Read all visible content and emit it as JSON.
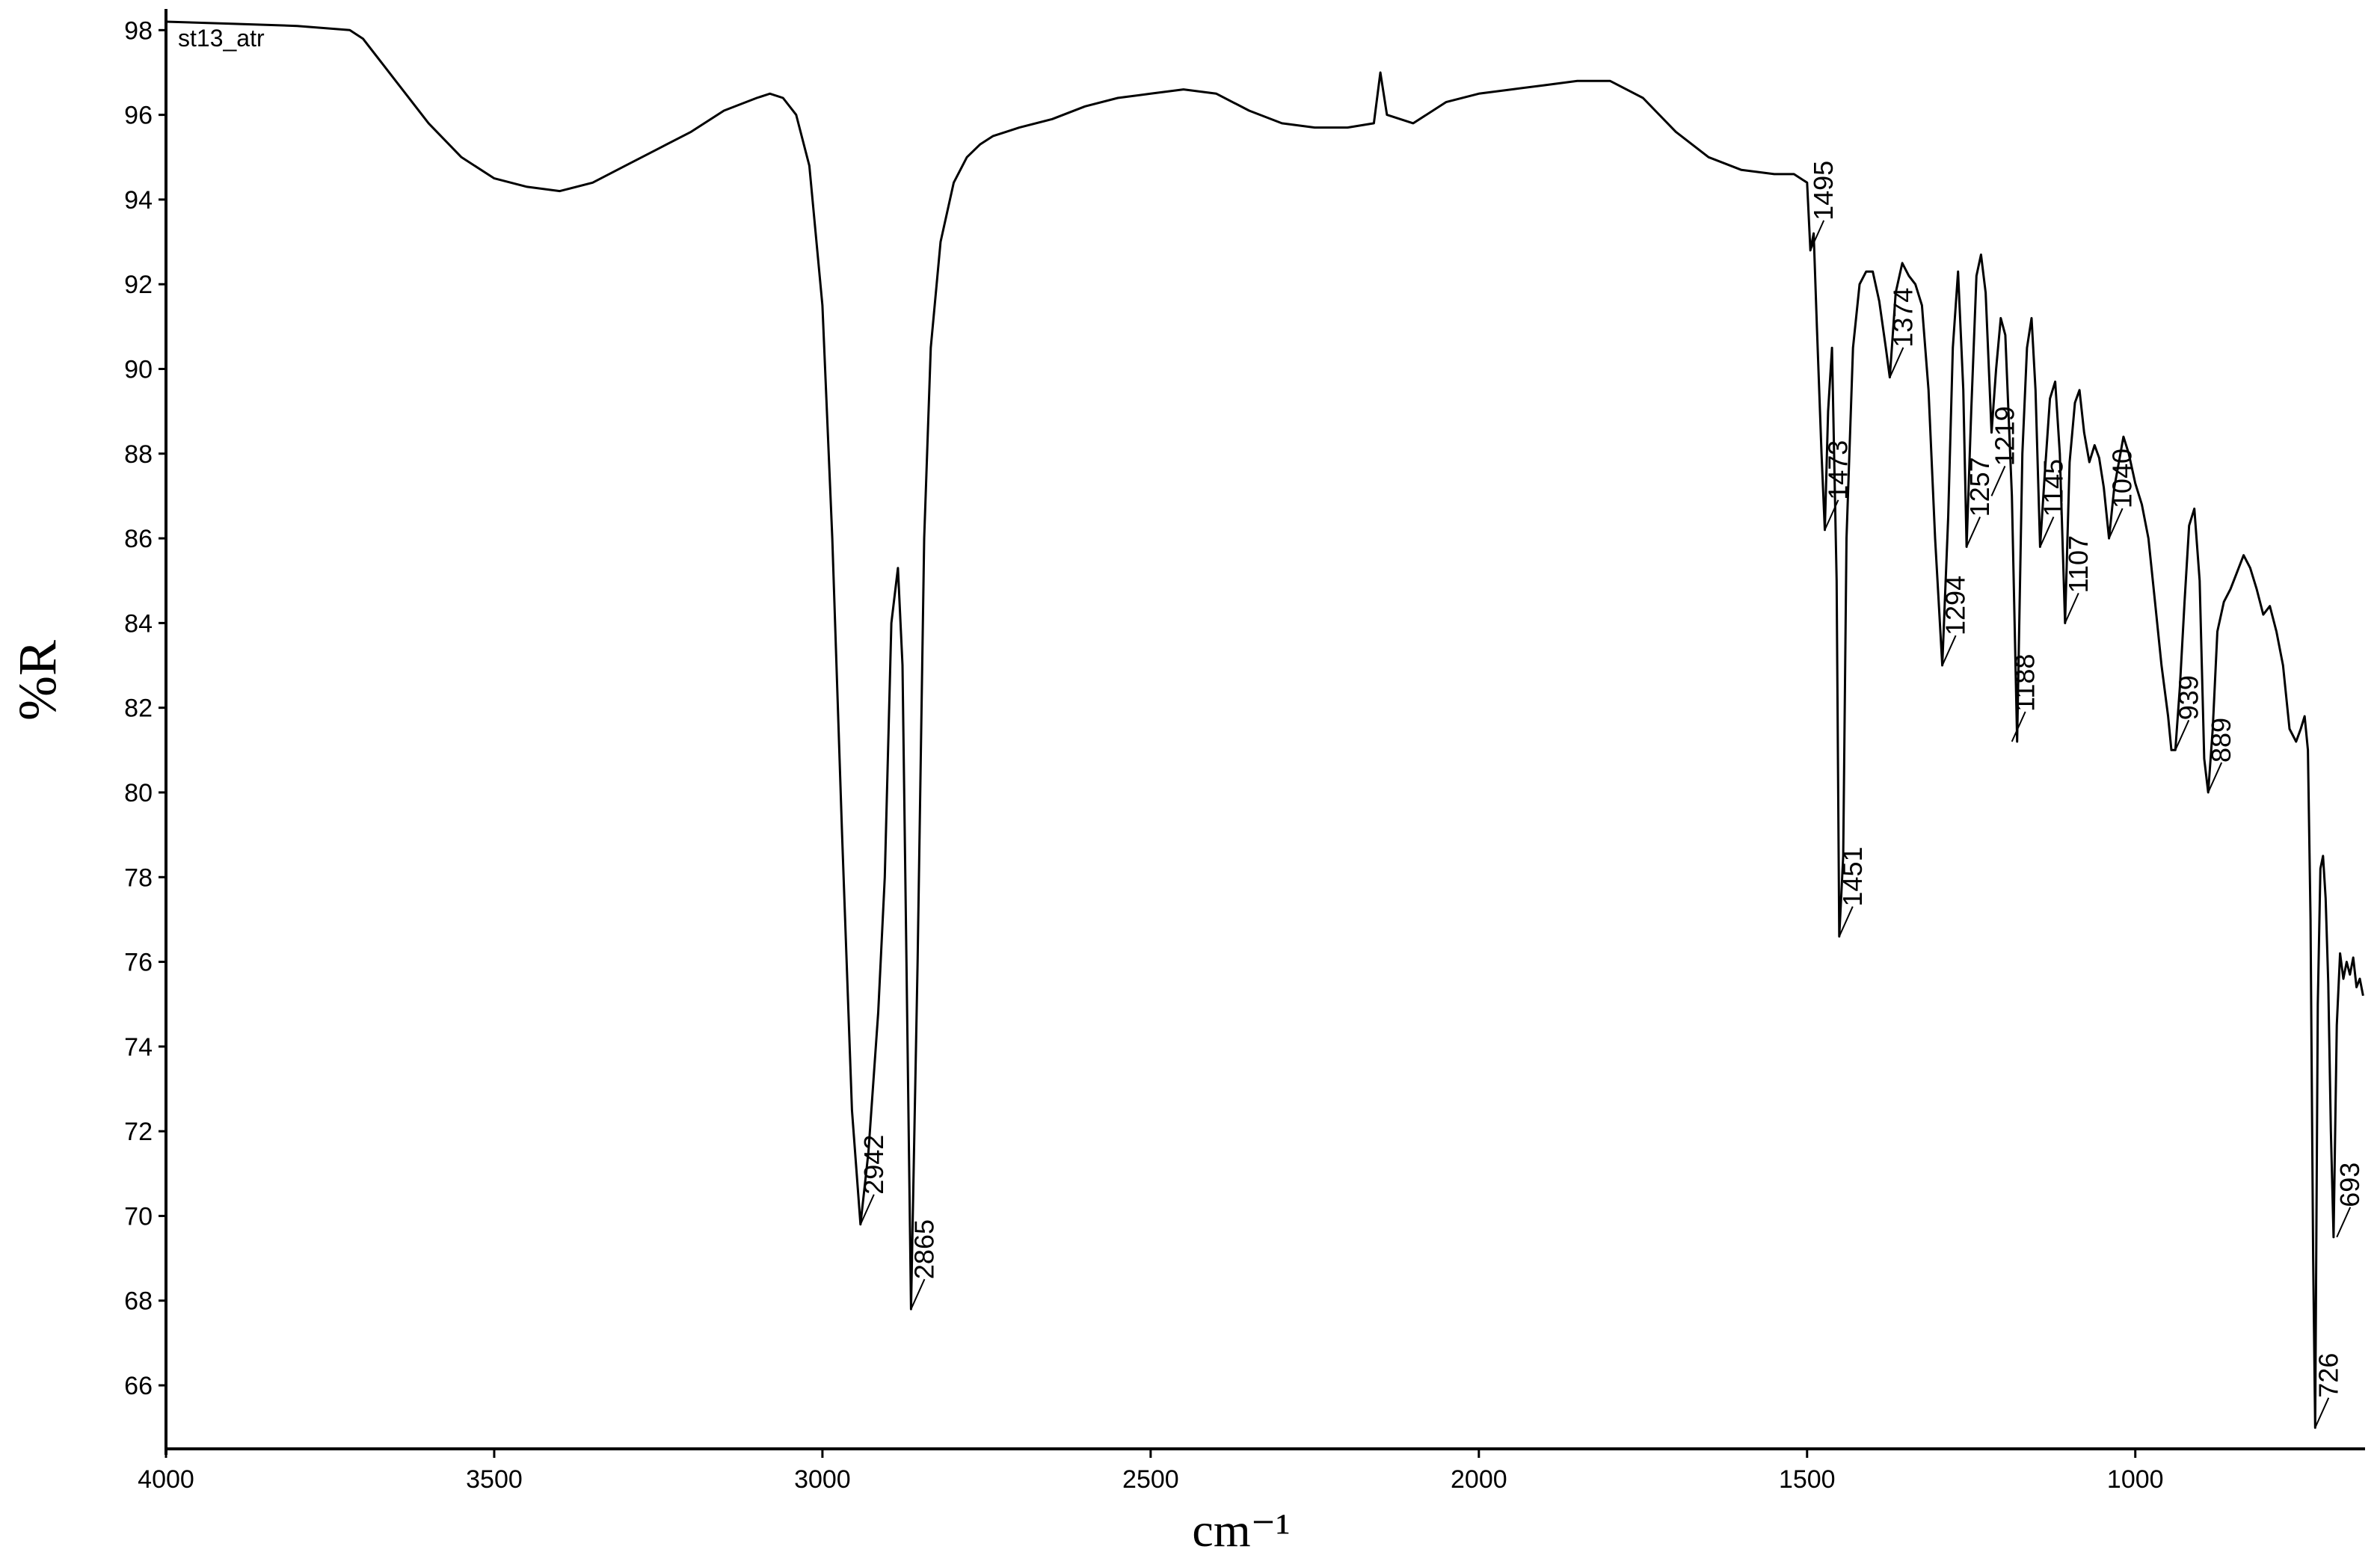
{
  "chart_data": {
    "type": "line",
    "title": "",
    "sample_label": "st13_atr",
    "xlabel": "cm⁻¹",
    "ylabel": "%R",
    "xlim": [
      4000,
      650
    ],
    "ylim": [
      64.5,
      98.5
    ],
    "x_reversed": true,
    "grid": false,
    "x_ticks": [
      4000,
      3500,
      3000,
      2500,
      2000,
      1500,
      1000
    ],
    "y_ticks": [
      66,
      68,
      70,
      72,
      74,
      76,
      78,
      80,
      82,
      84,
      86,
      88,
      90,
      92,
      94,
      96,
      98
    ],
    "series": [
      {
        "color": "#000000",
        "x": [
          4000,
          3900,
          3800,
          3720,
          3700,
          3650,
          3600,
          3550,
          3500,
          3450,
          3400,
          3350,
          3300,
          3250,
          3200,
          3150,
          3100,
          3080,
          3060,
          3040,
          3020,
          3000,
          2985,
          2970,
          2955,
          2942,
          2930,
          2915,
          2905,
          2895,
          2885,
          2878,
          2872,
          2865,
          2855,
          2845,
          2835,
          2820,
          2800,
          2780,
          2760,
          2740,
          2720,
          2700,
          2650,
          2600,
          2550,
          2500,
          2450,
          2400,
          2350,
          2300,
          2250,
          2200,
          2160,
          2150,
          2140,
          2100,
          2050,
          2000,
          1950,
          1900,
          1850,
          1800,
          1750,
          1700,
          1650,
          1600,
          1550,
          1520,
          1500,
          1495,
          1490,
          1485,
          1478,
          1473,
          1468,
          1462,
          1455,
          1451,
          1445,
          1440,
          1430,
          1420,
          1410,
          1400,
          1390,
          1380,
          1374,
          1365,
          1355,
          1345,
          1335,
          1325,
          1315,
          1305,
          1294,
          1285,
          1278,
          1270,
          1262,
          1257,
          1250,
          1242,
          1235,
          1228,
          1219,
          1212,
          1205,
          1198,
          1188,
          1180,
          1172,
          1165,
          1158,
          1152,
          1145,
          1138,
          1130,
          1122,
          1115,
          1107,
          1100,
          1092,
          1085,
          1078,
          1070,
          1062,
          1055,
          1048,
          1040,
          1032,
          1025,
          1018,
          1010,
          1000,
          990,
          980,
          970,
          960,
          950,
          945,
          939,
          932,
          925,
          918,
          910,
          902,
          895,
          889,
          882,
          875,
          865,
          855,
          845,
          835,
          825,
          815,
          805,
          795,
          785,
          775,
          765,
          755,
          748,
          742,
          737,
          733,
          729,
          726,
          722,
          718,
          714,
          710,
          706,
          702,
          698,
          693,
          688,
          683,
          678,
          673,
          668,
          663,
          658,
          653
        ],
        "y": [
          98.2,
          98.15,
          98.1,
          98.0,
          97.8,
          96.8,
          95.8,
          95.0,
          94.5,
          94.3,
          94.2,
          94.4,
          94.8,
          95.2,
          95.6,
          96.1,
          96.4,
          96.5,
          96.4,
          96.0,
          94.8,
          91.5,
          86.0,
          79.0,
          72.5,
          69.8,
          71.5,
          74.8,
          78.0,
          84.0,
          85.3,
          83.0,
          76.0,
          67.8,
          76.0,
          86.0,
          90.5,
          93.0,
          94.4,
          95.0,
          95.3,
          95.5,
          95.6,
          95.7,
          95.9,
          96.2,
          96.4,
          96.5,
          96.6,
          96.5,
          96.1,
          95.8,
          95.7,
          95.7,
          95.8,
          97.0,
          96.0,
          95.8,
          96.3,
          96.5,
          96.6,
          96.7,
          96.8,
          96.8,
          96.4,
          95.6,
          95.0,
          94.7,
          94.6,
          94.6,
          94.4,
          92.8,
          93.2,
          91.0,
          88.0,
          86.2,
          89.0,
          90.5,
          85.0,
          76.6,
          78.5,
          86.0,
          90.5,
          92.0,
          92.3,
          92.3,
          91.6,
          90.5,
          89.8,
          91.8,
          92.5,
          92.2,
          92.0,
          91.5,
          89.5,
          86.0,
          83.0,
          86.5,
          90.5,
          92.3,
          89.5,
          85.8,
          89.0,
          92.2,
          92.7,
          91.8,
          88.5,
          90.0,
          91.2,
          90.8,
          87.0,
          81.2,
          88.0,
          90.5,
          91.2,
          89.5,
          85.8,
          87.5,
          89.3,
          89.7,
          88.0,
          84.0,
          87.8,
          89.2,
          89.5,
          88.5,
          87.8,
          88.2,
          87.9,
          87.2,
          86.0,
          87.2,
          87.8,
          88.4,
          88.0,
          87.3,
          86.8,
          86.0,
          84.5,
          83.0,
          81.8,
          81.0,
          81.0,
          82.5,
          84.5,
          86.3,
          86.7,
          85.0,
          80.8,
          80.0,
          81.5,
          83.8,
          84.5,
          84.8,
          85.2,
          85.6,
          85.3,
          84.8,
          84.2,
          84.4,
          83.8,
          83.0,
          81.5,
          81.2,
          81.5,
          81.8,
          81.0,
          77.0,
          69.0,
          65.0,
          75.0,
          78.2,
          78.5,
          77.5,
          75.5,
          72.0,
          69.5,
          74.5,
          76.2,
          75.6,
          76.0,
          75.7,
          76.1,
          75.4,
          75.6,
          75.2
        ]
      }
    ],
    "annotations": [
      {
        "text": "2942",
        "x": 2942,
        "y": 69.8
      },
      {
        "text": "2865",
        "x": 2865,
        "y": 67.8
      },
      {
        "text": "1495",
        "x": 1495,
        "y": 92.8
      },
      {
        "text": "1473",
        "x": 1473,
        "y": 86.2
      },
      {
        "text": "1451",
        "x": 1451,
        "y": 76.6
      },
      {
        "text": "1374",
        "x": 1374,
        "y": 89.8
      },
      {
        "text": "1294",
        "x": 1294,
        "y": 83.0
      },
      {
        "text": "1257",
        "x": 1257,
        "y": 85.8
      },
      {
        "text": "1219",
        "x": 1219,
        "y": 87.0
      },
      {
        "text": "1188",
        "x": 1188,
        "y": 81.2
      },
      {
        "text": "1145",
        "x": 1145,
        "y": 85.8
      },
      {
        "text": "1107",
        "x": 1107,
        "y": 84.0
      },
      {
        "text": "1040",
        "x": 1040,
        "y": 86.0
      },
      {
        "text": "939",
        "x": 939,
        "y": 81.0
      },
      {
        "text": "889",
        "x": 889,
        "y": 80.0
      },
      {
        "text": "726",
        "x": 726,
        "y": 65.0
      },
      {
        "text": "693",
        "x": 693,
        "y": 69.5
      }
    ]
  }
}
